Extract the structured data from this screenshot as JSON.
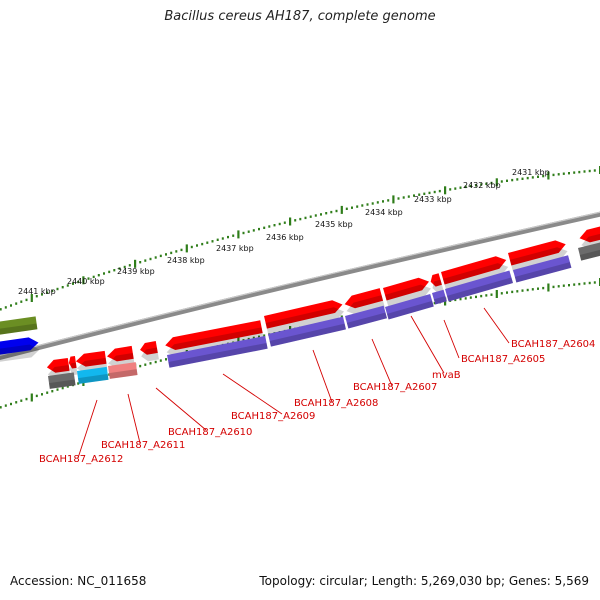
{
  "title": "Bacillus cereus AH187, complete genome",
  "footer": {
    "accession": "Accession: NC_011658",
    "topology": "Topology: circular; Length: 5,269,030 bp; Genes: 5,569"
  },
  "colors": {
    "backbone": "#8a8a8a",
    "ticks": "#2f7d1a",
    "gene_red": "#ff0000",
    "gene_purple": "#6a55d0",
    "gene_cyan": "#12b8ee",
    "gene_pink": "#f08080",
    "gene_grey": "#6b6b6b",
    "gene_olive": "#6b8e23",
    "gene_blue": "#0000ee",
    "label_red": "#d40000"
  },
  "kbp_ticks": [
    "2431 kbp",
    "2432 kbp",
    "2433 kbp",
    "2434 kbp",
    "2435 kbp",
    "2436 kbp",
    "2437 kbp",
    "2438 kbp",
    "2439 kbp",
    "2440 kbp",
    "2441 kbp"
  ],
  "gene_labels": [
    "BCAH187_A2604",
    "BCAH187_A2605",
    "mvaB",
    "BCAH187_A2607",
    "BCAH187_A2608",
    "BCAH187_A2609",
    "BCAH187_A2610",
    "BCAH187_A2611",
    "BCAH187_A2612"
  ]
}
